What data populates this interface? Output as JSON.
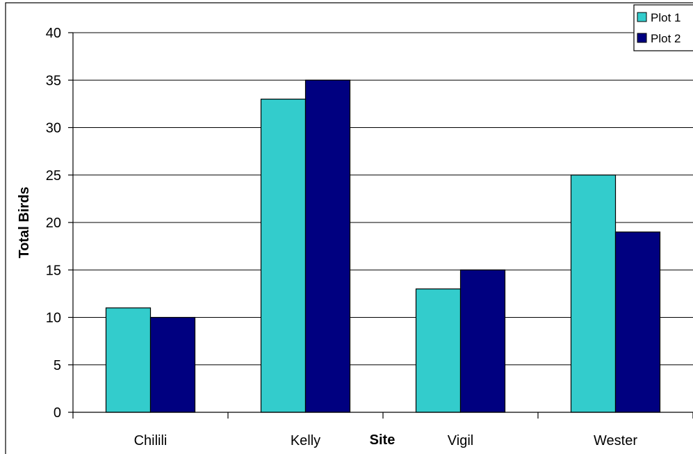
{
  "chart_data": {
    "type": "bar",
    "title": "",
    "xlabel": "Site",
    "ylabel": "Total Birds",
    "categories": [
      "Chilili",
      "Kelly",
      "Vigil",
      "Wester"
    ],
    "series": [
      {
        "name": "Plot 1",
        "color": "#33CCCC",
        "values": [
          11,
          33,
          13,
          25
        ]
      },
      {
        "name": "Plot 2",
        "color": "#000080",
        "values": [
          10,
          35,
          15,
          19
        ]
      }
    ],
    "ylim": [
      0,
      40
    ],
    "yticks": [
      "0",
      "5",
      "10",
      "15",
      "20",
      "25",
      "30",
      "35",
      "40"
    ],
    "grid": true,
    "legend_position": "top-right"
  }
}
